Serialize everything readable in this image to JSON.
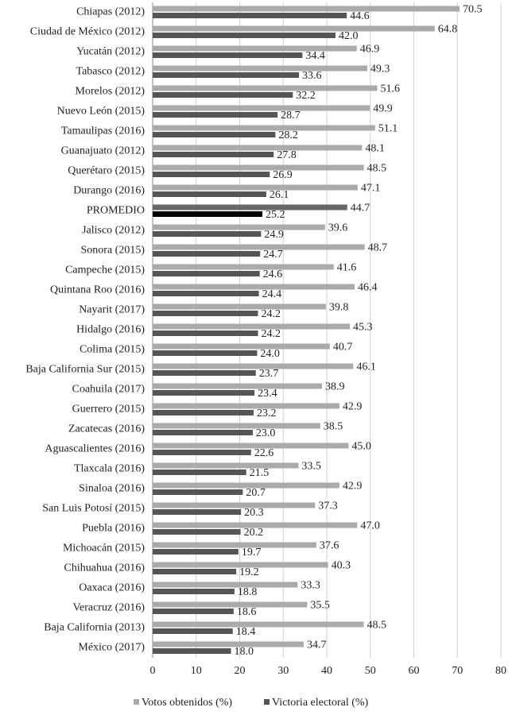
{
  "chart_data": {
    "type": "hbar",
    "categories": [
      "Chiapas (2012)",
      "Ciudad de México (2012)",
      "Yucatán (2012)",
      "Tabasco (2012)",
      "Morelos (2012)",
      "Nuevo León (2015)",
      "Tamaulipas (2016)",
      "Guanajuato (2012)",
      "Querétaro (2015)",
      "Durango (2016)",
      "PROMEDIO",
      "Jalisco (2012)",
      "Sonora (2015)",
      "Campeche (2015)",
      "Quintana Roo (2016)",
      "Nayarit (2017)",
      "Hidalgo (2016)",
      "Colima (2015)",
      "Baja California Sur (2015)",
      "Coahuila (2017)",
      "Guerrero (2015)",
      "Zacatecas (2016)",
      "Aguascalientes (2016)",
      "Tlaxcala (2016)",
      "Sinaloa (2016)",
      "San Luis Potosí (2015)",
      "Puebla (2016)",
      "Michoacán (2015)",
      "Chihuahua (2016)",
      "Oaxaca (2016)",
      "Veracruz (2016)",
      "Baja California (2013)",
      "México (2017)"
    ],
    "series": [
      {
        "name": "Votos obtenidos (%)",
        "color": "#aaaaaa",
        "highlight_color": "#666666",
        "values": [
          70.5,
          64.8,
          46.9,
          49.3,
          51.6,
          49.9,
          51.1,
          48.1,
          48.5,
          47.1,
          44.7,
          39.6,
          48.7,
          41.6,
          46.4,
          39.8,
          45.3,
          40.7,
          46.1,
          38.9,
          42.9,
          38.5,
          45.0,
          33.5,
          42.9,
          37.3,
          47.0,
          37.6,
          40.3,
          33.3,
          35.5,
          48.5,
          34.7
        ],
        "value_labels": [
          "70.5",
          "64.8",
          "46.9",
          "49.3",
          "51.6",
          "49.9",
          "51.1",
          "48.1",
          "48.5",
          "47.1",
          "44.7",
          "39.6",
          "48.7",
          "41.6",
          "46.4",
          "39.8",
          "45.3",
          "40.7",
          "46.1",
          "38.9",
          "42.9",
          "38.5",
          "45.0",
          "33.5",
          "42.9",
          "37.3",
          "47.0",
          "37.6",
          "40.3",
          "33.3",
          "35.5",
          "48.5",
          "34.7"
        ]
      },
      {
        "name": "Victoria electoral (%)",
        "color": "#555555",
        "highlight_color": "#000000",
        "values": [
          44.6,
          42.0,
          34.4,
          33.6,
          32.2,
          28.7,
          28.2,
          27.8,
          26.9,
          26.1,
          25.2,
          24.9,
          24.7,
          24.6,
          24.4,
          24.2,
          24.2,
          24.0,
          23.7,
          23.4,
          23.2,
          23.0,
          22.6,
          21.5,
          20.7,
          20.3,
          20.2,
          19.7,
          19.2,
          18.8,
          18.6,
          18.4,
          18.0
        ],
        "value_labels": [
          "44.6",
          "42.0",
          "34.4",
          "33.6",
          "32.2",
          "28.7",
          "28.2",
          "27.8",
          "26.9",
          "26.1",
          "25.2",
          "24.9",
          "24.7",
          "24.6",
          "24.4",
          "24.2",
          "24.2",
          "24.0",
          "23.7",
          "23.4",
          "23.2",
          "23.0",
          "22.6",
          "21.5",
          "20.7",
          "20.3",
          "20.2",
          "19.7",
          "19.2",
          "18.8",
          "18.6",
          "18.4",
          "18.0"
        ]
      }
    ],
    "highlight_index": 10,
    "xlim": [
      0,
      80
    ],
    "xticks": [
      0,
      10,
      20,
      30,
      40,
      50,
      60,
      70,
      80
    ],
    "grid": true,
    "legend": "bottom"
  }
}
